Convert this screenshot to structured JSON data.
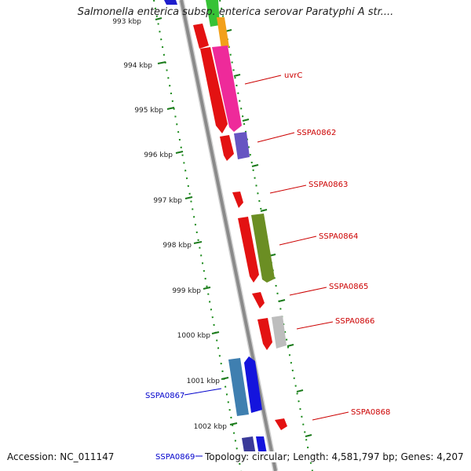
{
  "title": "Salmonella enterica subsp. enterica serovar Paratyphi A str....",
  "footer": {
    "accession": "Accession: NC_011147",
    "summary": "Topology: circular; Length: 4,581,797 bp; Genes: 4,207"
  },
  "ticks": [
    {
      "label": "993 kbp"
    },
    {
      "label": "994 kbp"
    },
    {
      "label": "995 kbp"
    },
    {
      "label": "996 kbp"
    },
    {
      "label": "997 kbp"
    },
    {
      "label": "998 kbp"
    },
    {
      "label": "999 kbp"
    },
    {
      "label": "1000 kbp"
    },
    {
      "label": "1001 kbp"
    },
    {
      "label": "1002 kbp"
    }
  ],
  "genes": [
    {
      "label": "uvrC"
    },
    {
      "label": "SSPA0862"
    },
    {
      "label": "SSPA0863"
    },
    {
      "label": "SSPA0864"
    },
    {
      "label": "SSPA0865"
    },
    {
      "label": "SSPA0866"
    },
    {
      "label": "SSPA0867"
    },
    {
      "label": "SSPA0868"
    },
    {
      "label": "SSPA0869"
    }
  ],
  "colors": {
    "gene_label_forward": "#cc0000",
    "gene_label_reverse": "#0000cc",
    "tick": "#1a7a1a",
    "backbone": "#8a8a8a"
  }
}
